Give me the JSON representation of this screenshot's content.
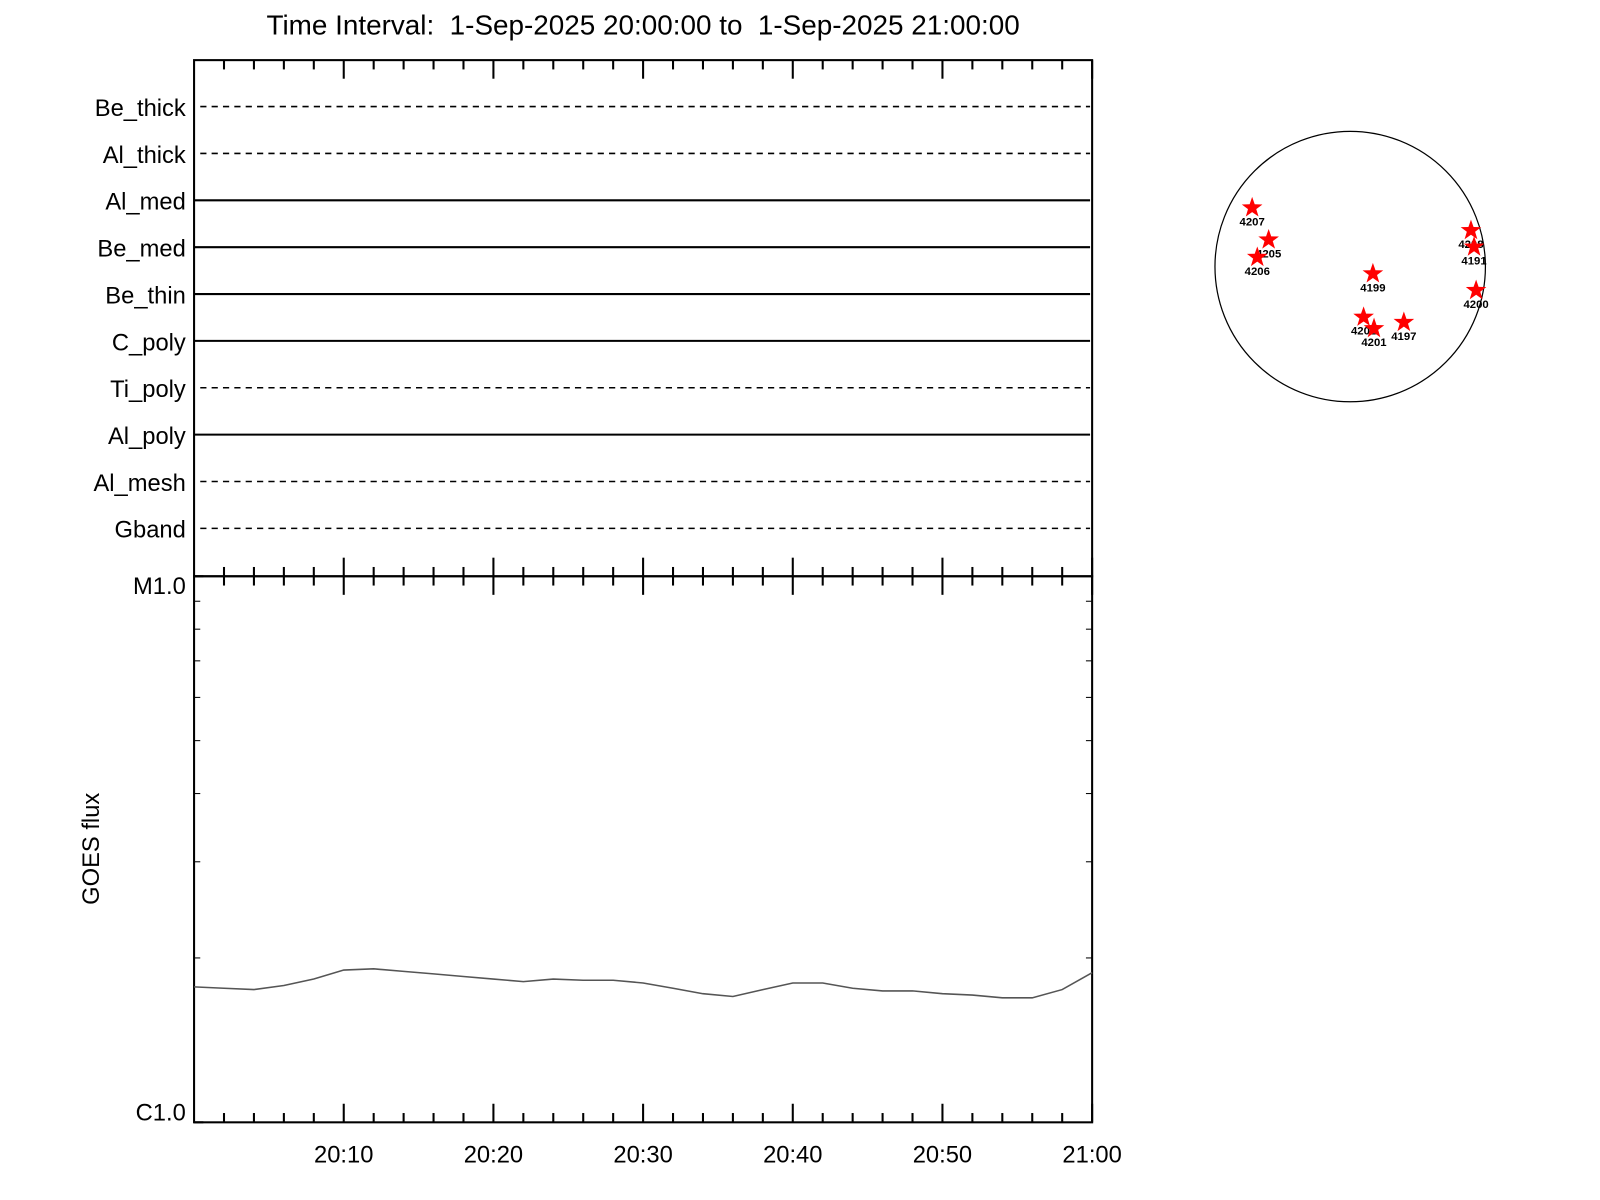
{
  "chart_data": [
    {
      "type": "rows",
      "title": "Time Interval:  1-Sep-2025 20:00:00 to  1-Sep-2025 21:00:00",
      "categories": [
        "Be_thick",
        "Al_thick",
        "Al_med",
        "Be_med",
        "Be_thin",
        "C_poly",
        "Ti_poly",
        "Al_poly",
        "Al_mesh",
        "Gband"
      ],
      "line_styles": [
        "dashed",
        "dashed",
        "solid",
        "solid",
        "solid",
        "solid",
        "dashed",
        "solid",
        "dashed",
        "dashed"
      ]
    },
    {
      "type": "line",
      "ylabel": "GOES flux",
      "log_y": true,
      "color": "#555555",
      "x": [
        "20:00",
        "20:02",
        "20:04",
        "20:06",
        "20:08",
        "20:10",
        "20:12",
        "20:14",
        "20:16",
        "20:18",
        "20:20",
        "20:22",
        "20:24",
        "20:26",
        "20:28",
        "20:30",
        "20:32",
        "20:34",
        "20:36",
        "20:38",
        "20:40",
        "20:42",
        "20:44",
        "20:46",
        "20:48",
        "20:50",
        "20:52",
        "20:54",
        "20:56",
        "20:58",
        "21:00"
      ],
      "values": [
        1.77e-06,
        1.76e-06,
        1.75e-06,
        1.78e-06,
        1.83e-06,
        1.9e-06,
        1.91e-06,
        1.89e-06,
        1.87e-06,
        1.85e-06,
        1.83e-06,
        1.81e-06,
        1.83e-06,
        1.82e-06,
        1.82e-06,
        1.8e-06,
        1.76e-06,
        1.72e-06,
        1.7e-06,
        1.75e-06,
        1.8e-06,
        1.8e-06,
        1.76e-06,
        1.74e-06,
        1.74e-06,
        1.72e-06,
        1.71e-06,
        1.69e-06,
        1.69e-06,
        1.75e-06,
        1.88e-06
      ],
      "xlim": [
        "20:00",
        "21:00"
      ],
      "xticks": [
        "20:10",
        "20:20",
        "20:30",
        "20:40",
        "20:50",
        "21:00"
      ],
      "xminorticks": [
        "20:02",
        "20:04",
        "20:06",
        "20:08",
        "20:12",
        "20:14",
        "20:16",
        "20:18",
        "20:22",
        "20:24",
        "20:26",
        "20:28",
        "20:32",
        "20:34",
        "20:36",
        "20:38",
        "20:42",
        "20:44",
        "20:46",
        "20:48",
        "20:52",
        "20:54",
        "20:56",
        "20:58"
      ],
      "ylim": [
        1e-06,
        1e-05
      ],
      "yticks": [
        {
          "value": 1e-06,
          "label": "C1.0"
        },
        {
          "value": 1e-05,
          "label": "M1.0"
        }
      ],
      "yminorticks": [
        2e-06,
        3e-06,
        4e-06,
        5e-06,
        6e-06,
        7e-06,
        8e-06,
        9e-06
      ]
    },
    {
      "type": "scatter",
      "color": "#ff0000",
      "labels": [
        "4207",
        "4205",
        "4206",
        "4199",
        "4202",
        "4201",
        "4197",
        "4208",
        "4191",
        "4200"
      ],
      "x": [
        -0.725,
        -0.603,
        -0.687,
        0.168,
        0.099,
        0.176,
        0.397,
        0.893,
        0.916,
        0.931
      ],
      "values": [
        0.435,
        0.198,
        0.069,
        -0.053,
        -0.374,
        -0.458,
        -0.412,
        0.267,
        0.145,
        -0.176
      ],
      "xlim": [
        -1,
        1
      ],
      "ylim": [
        -1,
        1
      ]
    }
  ]
}
